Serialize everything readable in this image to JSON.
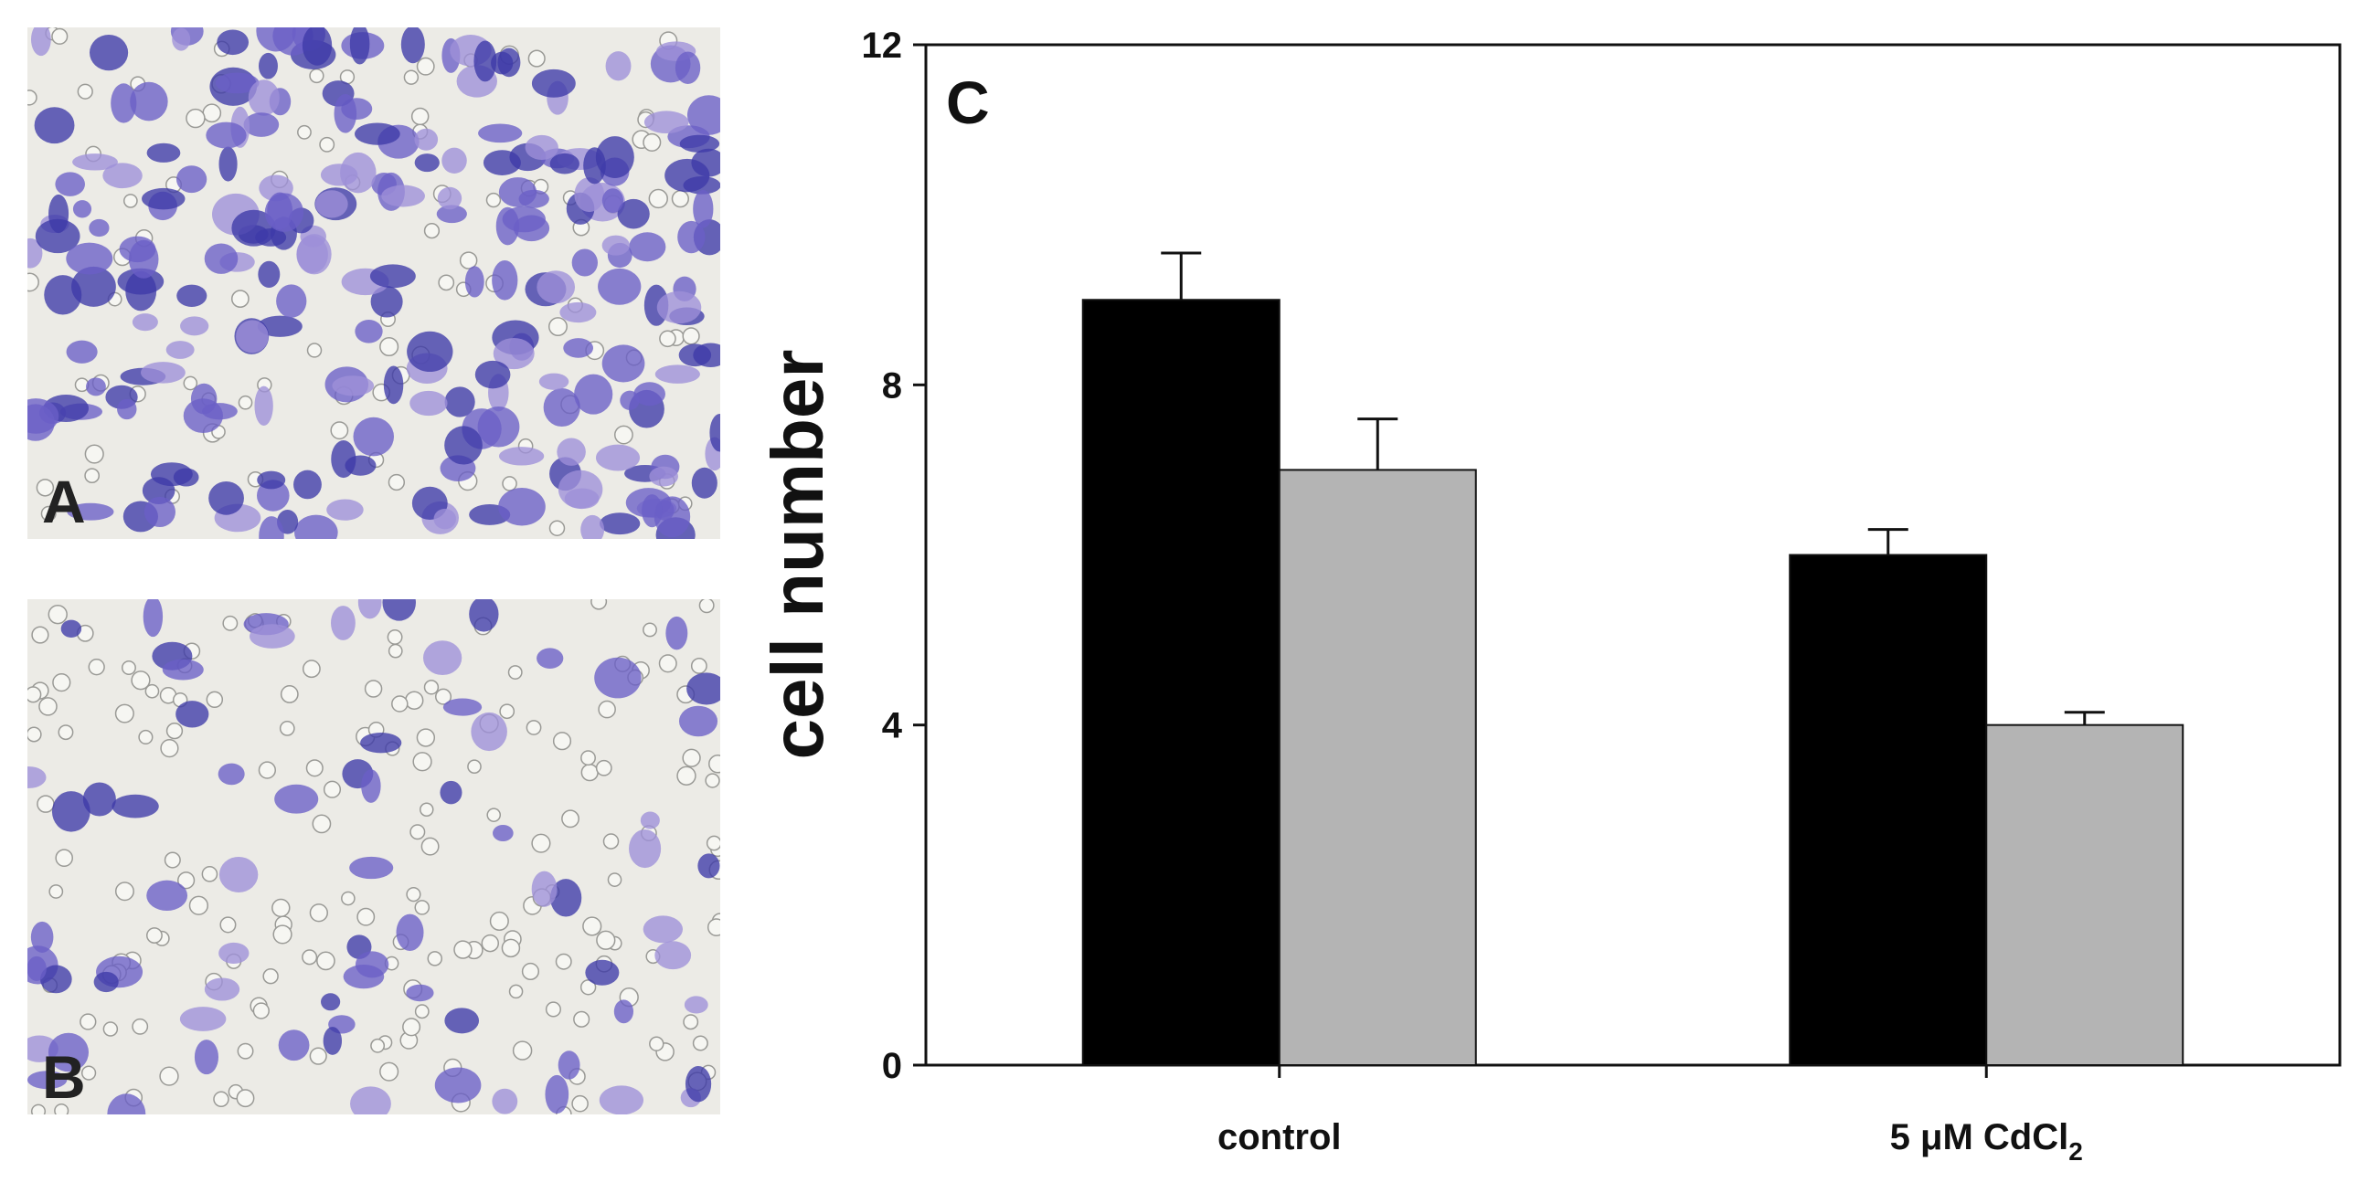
{
  "panels": {
    "a_label": "A",
    "b_label": "B",
    "c_label": "C"
  },
  "micrograph_colors": {
    "background": "#ecebe6",
    "stain": "#6a5fc7",
    "stain_dark": "#3d3aa8",
    "stain_light": "#9d8fd8"
  },
  "chart_data": {
    "type": "bar",
    "categories": [
      "control",
      "5 μM CdCl"
    ],
    "category_subscript": [
      "",
      "2"
    ],
    "series": [
      {
        "color": "#000000",
        "values": [
          9.0,
          6.0
        ],
        "errors": [
          0.55,
          0.3
        ]
      },
      {
        "color": "#b4b4b4",
        "values": [
          7.0,
          4.0
        ],
        "errors": [
          0.6,
          0.15
        ]
      }
    ],
    "ylabel": "cell number",
    "ylim": [
      0,
      12
    ],
    "yticks": [
      0,
      4,
      8,
      12
    ],
    "grid": false,
    "legend": "none"
  }
}
